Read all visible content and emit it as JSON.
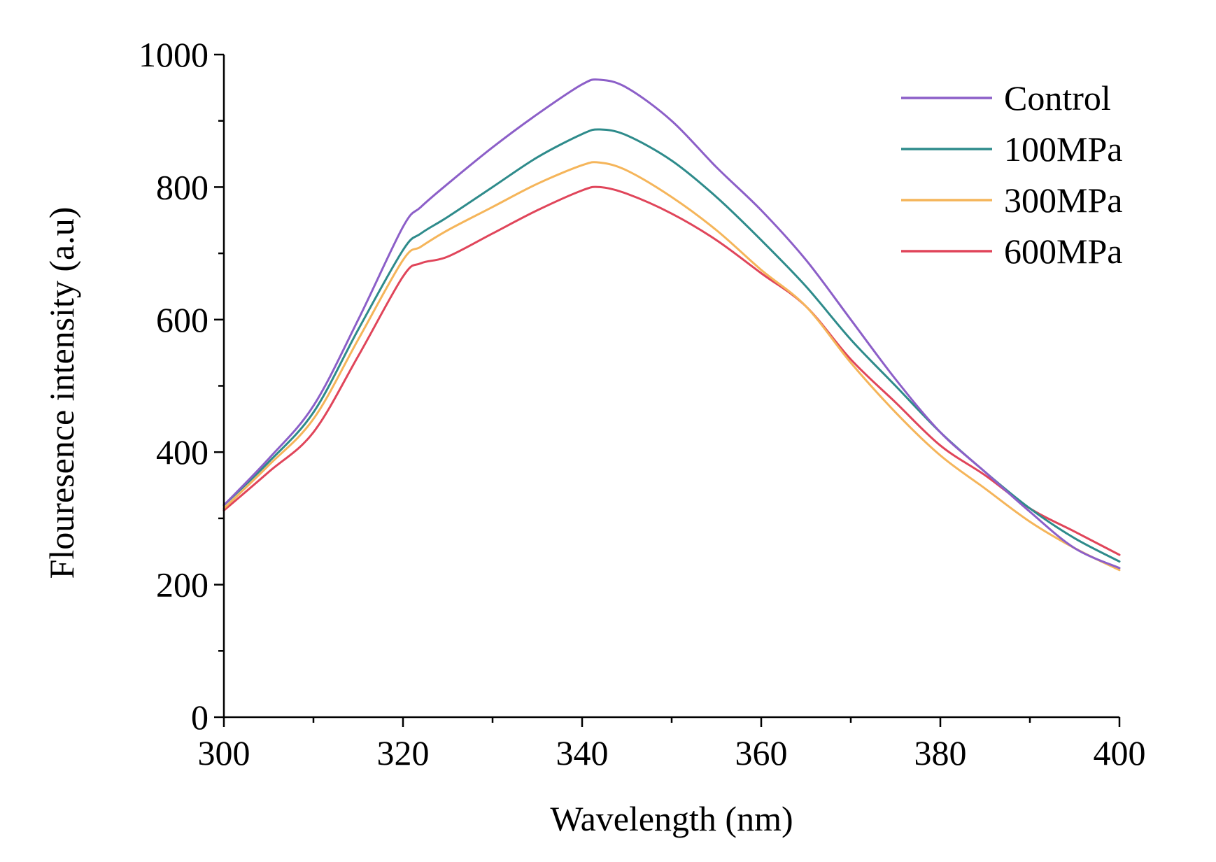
{
  "chart_data": {
    "type": "line",
    "xlabel": "Wavelength (nm)",
    "ylabel": "Flouresence intensity (a.u)",
    "xlim": [
      300,
      400
    ],
    "ylim": [
      0,
      1000
    ],
    "x_ticks": [
      300,
      320,
      340,
      360,
      380,
      400
    ],
    "y_ticks": [
      0,
      200,
      400,
      600,
      800,
      1000
    ],
    "x_tick_labels": [
      "300",
      "320",
      "340",
      "360",
      "380",
      "400"
    ],
    "y_tick_labels": [
      "0",
      "200",
      "400",
      "600",
      "800",
      "1000"
    ],
    "x_minor_step": 10,
    "y_minor_step": 100,
    "grid": false,
    "legend_position": "top-right",
    "x": [
      300,
      305,
      310,
      315,
      320,
      322,
      325,
      330,
      335,
      340,
      342,
      345,
      350,
      355,
      360,
      365,
      370,
      375,
      380,
      385,
      390,
      395,
      400
    ],
    "series": [
      {
        "name": "Control",
        "color": "#8C5FC8",
        "values": [
          320,
          390,
          470,
          600,
          740,
          770,
          805,
          860,
          910,
          955,
          962,
          950,
          900,
          830,
          765,
          690,
          600,
          510,
          430,
          370,
          310,
          255,
          225
        ]
      },
      {
        "name": "100MPa",
        "color": "#2E8B8B",
        "values": [
          320,
          385,
          460,
          585,
          705,
          730,
          755,
          800,
          845,
          880,
          887,
          878,
          840,
          785,
          720,
          650,
          570,
          500,
          430,
          370,
          315,
          270,
          235
        ]
      },
      {
        "name": "300MPa",
        "color": "#F5B55A",
        "values": [
          315,
          380,
          450,
          570,
          690,
          710,
          735,
          770,
          805,
          833,
          837,
          825,
          785,
          735,
          675,
          620,
          535,
          460,
          395,
          345,
          295,
          255,
          222
        ]
      },
      {
        "name": "600MPa",
        "color": "#E0455A",
        "values": [
          312,
          370,
          430,
          545,
          665,
          685,
          695,
          730,
          765,
          795,
          800,
          790,
          760,
          720,
          670,
          620,
          540,
          475,
          410,
          365,
          315,
          280,
          245
        ]
      }
    ]
  }
}
